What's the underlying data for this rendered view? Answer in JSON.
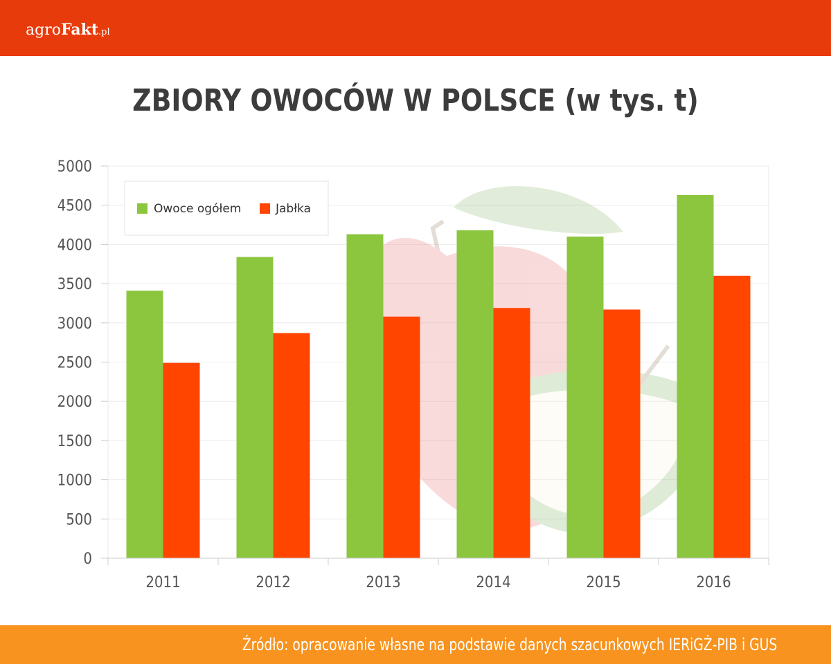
{
  "header": {
    "logo": {
      "part1": "agro",
      "part2": "Fakt",
      "part3": ".pl"
    }
  },
  "colors": {
    "topbar": "#e83b0c",
    "footer": "#f7931e",
    "green": "#8cc63f",
    "red": "#ff4500"
  },
  "chart_data": {
    "type": "bar",
    "title": "ZBIORY OWOCÓW W POLSCE (w tys. t)",
    "categories": [
      "2011",
      "2012",
      "2013",
      "2014",
      "2015",
      "2016"
    ],
    "series": [
      {
        "name": "Owoce ogółem",
        "color": "#8cc63f",
        "values": [
          3410,
          3840,
          4130,
          4180,
          4100,
          4630
        ]
      },
      {
        "name": "Jabłka",
        "color": "#ff4500",
        "values": [
          2490,
          2870,
          3080,
          3190,
          3170,
          3600
        ]
      }
    ],
    "yticks": [
      0,
      500,
      1000,
      1500,
      2000,
      2500,
      3000,
      3500,
      4000,
      4500,
      5000
    ],
    "ylim": [
      0,
      5000
    ],
    "grid": true,
    "legend": "top-left"
  },
  "footer": {
    "source": "Źródło: opracowanie własne na podstawie danych szacunkowych IERiGŻ-PIB i GUS"
  }
}
